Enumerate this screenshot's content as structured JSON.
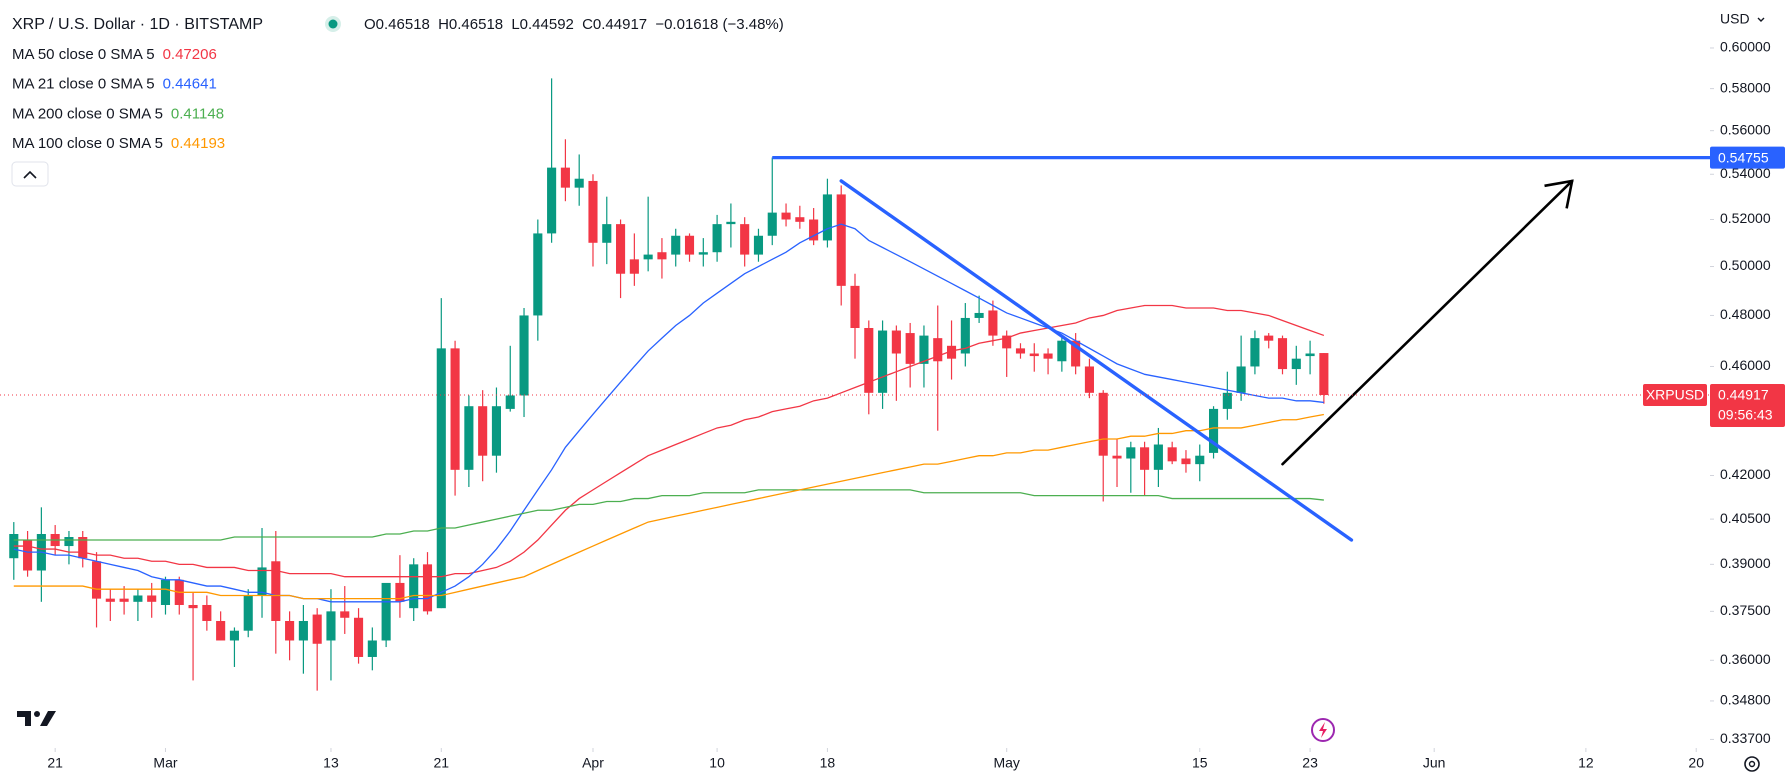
{
  "chart_data": {
    "type": "candlestick",
    "title": "XRP / U.S. Dollar · 1D · BITSTAMP",
    "symbol": "XRPUSD",
    "currency": "USD",
    "ohlc_labels": [
      "O",
      "H",
      "L",
      "C"
    ],
    "change": "−0.01618 (−3.48%)",
    "countdown": "09:56:43",
    "up_color": "#089981",
    "down_color": "#f23645",
    "log_y": true,
    "grid": false,
    "x": [
      "02-18",
      "02-19",
      "02-20",
      "02-21",
      "02-22",
      "02-23",
      "02-24",
      "02-25",
      "02-26",
      "02-27",
      "02-28",
      "03-01",
      "03-02",
      "03-03",
      "03-04",
      "03-05",
      "03-06",
      "03-07",
      "03-08",
      "03-09",
      "03-10",
      "03-11",
      "03-12",
      "03-13",
      "03-14",
      "03-15",
      "03-16",
      "03-17",
      "03-18",
      "03-19",
      "03-20",
      "03-21",
      "03-22",
      "03-23",
      "03-24",
      "03-25",
      "03-26",
      "03-27",
      "03-28",
      "03-29",
      "03-30",
      "03-31",
      "04-01",
      "04-02",
      "04-03",
      "04-04",
      "04-05",
      "04-06",
      "04-07",
      "04-08",
      "04-09",
      "04-10",
      "04-11",
      "04-12",
      "04-13",
      "04-14",
      "04-15",
      "04-16",
      "04-17",
      "04-18",
      "04-19",
      "04-20",
      "04-21",
      "04-22",
      "04-23",
      "04-24",
      "04-25",
      "04-26",
      "04-27",
      "04-28",
      "04-29",
      "04-30",
      "05-01",
      "05-02",
      "05-03",
      "05-04",
      "05-05",
      "05-06",
      "05-07",
      "05-08",
      "05-09",
      "05-10",
      "05-11",
      "05-12",
      "05-13",
      "05-14",
      "05-15",
      "05-16",
      "05-17",
      "05-18",
      "05-19",
      "05-20",
      "05-21",
      "05-22",
      "05-23",
      "05-24"
    ],
    "open": [
      0.392,
      0.398,
      0.388,
      0.4,
      0.396,
      0.399,
      0.391,
      0.379,
      0.379,
      0.378,
      0.38,
      0.377,
      0.385,
      0.377,
      0.377,
      0.372,
      0.366,
      0.369,
      0.38,
      0.391,
      0.372,
      0.366,
      0.374,
      0.366,
      0.375,
      0.373,
      0.361,
      0.366,
      0.384,
      0.376,
      0.39,
      0.376,
      0.467,
      0.422,
      0.445,
      0.427,
      0.444,
      0.449,
      0.48,
      0.514,
      0.543,
      0.534,
      0.537,
      0.51,
      0.518,
      0.503,
      0.503,
      0.506,
      0.505,
      0.513,
      0.505,
      0.506,
      0.518,
      0.518,
      0.505,
      0.513,
      0.523,
      0.521,
      0.52,
      0.511,
      0.531,
      0.492,
      0.475,
      0.45,
      0.474,
      0.473,
      0.461,
      0.471,
      0.468,
      0.465,
      0.479,
      0.482,
      0.472,
      0.467,
      0.465,
      0.465,
      0.462,
      0.47,
      0.46,
      0.45,
      0.427,
      0.426,
      0.43,
      0.422,
      0.43,
      0.426,
      0.424,
      0.428,
      0.444,
      0.45,
      0.46,
      0.472,
      0.471,
      0.459,
      0.464,
      0.46518
    ],
    "high": [
      0.404,
      0.401,
      0.409,
      0.403,
      0.401,
      0.401,
      0.394,
      0.382,
      0.383,
      0.382,
      0.384,
      0.386,
      0.386,
      0.381,
      0.38,
      0.375,
      0.37,
      0.382,
      0.402,
      0.401,
      0.375,
      0.377,
      0.376,
      0.382,
      0.383,
      0.376,
      0.37,
      0.383,
      0.393,
      0.392,
      0.394,
      0.487,
      0.47,
      0.449,
      0.451,
      0.452,
      0.468,
      0.483,
      0.52,
      0.585,
      0.556,
      0.549,
      0.54,
      0.53,
      0.52,
      0.514,
      0.53,
      0.512,
      0.516,
      0.514,
      0.512,
      0.522,
      0.527,
      0.521,
      0.516,
      0.5476,
      0.527,
      0.526,
      0.525,
      0.538,
      0.535,
      0.497,
      0.478,
      0.478,
      0.476,
      0.477,
      0.476,
      0.484,
      0.478,
      0.485,
      0.488,
      0.486,
      0.474,
      0.469,
      0.469,
      0.467,
      0.472,
      0.473,
      0.463,
      0.451,
      0.433,
      0.432,
      0.432,
      0.437,
      0.432,
      0.429,
      0.431,
      0.445,
      0.458,
      0.472,
      0.474,
      0.473,
      0.472,
      0.468,
      0.47,
      0.46518
    ],
    "low": [
      0.385,
      0.386,
      0.378,
      0.393,
      0.39,
      0.389,
      0.37,
      0.372,
      0.374,
      0.372,
      0.373,
      0.374,
      0.374,
      0.354,
      0.369,
      0.366,
      0.358,
      0.367,
      0.373,
      0.362,
      0.36,
      0.356,
      0.351,
      0.354,
      0.368,
      0.359,
      0.357,
      0.364,
      0.373,
      0.372,
      0.374,
      0.376,
      0.413,
      0.416,
      0.418,
      0.421,
      0.443,
      0.441,
      0.47,
      0.51,
      0.528,
      0.526,
      0.5,
      0.501,
      0.487,
      0.492,
      0.498,
      0.495,
      0.5,
      0.502,
      0.5,
      0.502,
      0.508,
      0.5,
      0.502,
      0.509,
      0.517,
      0.516,
      0.509,
      0.508,
      0.484,
      0.463,
      0.442,
      0.444,
      0.447,
      0.452,
      0.452,
      0.436,
      0.455,
      0.46,
      0.477,
      0.468,
      0.456,
      0.463,
      0.458,
      0.457,
      0.458,
      0.457,
      0.448,
      0.411,
      0.416,
      0.414,
      0.413,
      0.416,
      0.424,
      0.421,
      0.418,
      0.426,
      0.44,
      0.447,
      0.457,
      0.467,
      0.457,
      0.453,
      0.457,
      0.44592
    ],
    "close": [
      0.4,
      0.388,
      0.4,
      0.396,
      0.399,
      0.392,
      0.379,
      0.378,
      0.378,
      0.38,
      0.378,
      0.385,
      0.377,
      0.376,
      0.372,
      0.366,
      0.369,
      0.38,
      0.389,
      0.372,
      0.366,
      0.372,
      0.365,
      0.375,
      0.373,
      0.361,
      0.366,
      0.384,
      0.378,
      0.39,
      0.375,
      0.467,
      0.422,
      0.445,
      0.427,
      0.445,
      0.449,
      0.48,
      0.514,
      0.543,
      0.534,
      0.538,
      0.51,
      0.518,
      0.497,
      0.497,
      0.505,
      0.503,
      0.513,
      0.505,
      0.506,
      0.518,
      0.519,
      0.505,
      0.513,
      0.523,
      0.52,
      0.519,
      0.511,
      0.531,
      0.492,
      0.475,
      0.45,
      0.474,
      0.465,
      0.461,
      0.472,
      0.462,
      0.463,
      0.479,
      0.481,
      0.472,
      0.467,
      0.465,
      0.464,
      0.463,
      0.47,
      0.46,
      0.45,
      0.427,
      0.426,
      0.43,
      0.422,
      0.431,
      0.425,
      0.424,
      0.427,
      0.444,
      0.45,
      0.46,
      0.471,
      0.47,
      0.459,
      0.463,
      0.465,
      0.44917
    ],
    "series": [
      {
        "name": "MA 50 close 0 SMA 5",
        "color": "#f23645",
        "values": [
          0.396,
          0.396,
          0.395,
          0.395,
          0.394,
          0.394,
          0.393,
          0.393,
          0.392,
          0.392,
          0.391,
          0.391,
          0.39,
          0.39,
          0.389,
          0.389,
          0.389,
          0.388,
          0.388,
          0.388,
          0.387,
          0.387,
          0.387,
          0.387,
          0.386,
          0.386,
          0.386,
          0.386,
          0.386,
          0.386,
          0.386,
          0.386,
          0.387,
          0.387,
          0.388,
          0.389,
          0.391,
          0.394,
          0.398,
          0.403,
          0.408,
          0.412,
          0.415,
          0.418,
          0.421,
          0.424,
          0.427,
          0.429,
          0.431,
          0.433,
          0.435,
          0.437,
          0.438,
          0.44,
          0.441,
          0.443,
          0.444,
          0.445,
          0.447,
          0.448,
          0.45,
          0.452,
          0.454,
          0.456,
          0.458,
          0.46,
          0.462,
          0.464,
          0.466,
          0.467,
          0.469,
          0.47,
          0.471,
          0.473,
          0.474,
          0.475,
          0.476,
          0.477,
          0.479,
          0.48,
          0.482,
          0.483,
          0.484,
          0.484,
          0.484,
          0.483,
          0.483,
          0.483,
          0.482,
          0.482,
          0.481,
          0.48,
          0.478,
          0.476,
          0.474,
          0.47206
        ]
      },
      {
        "name": "MA 21 close 0 SMA 5",
        "color": "#2962ff",
        "values": [
          0.395,
          0.394,
          0.394,
          0.393,
          0.393,
          0.392,
          0.391,
          0.39,
          0.389,
          0.388,
          0.386,
          0.385,
          0.385,
          0.384,
          0.383,
          0.383,
          0.382,
          0.381,
          0.381,
          0.38,
          0.38,
          0.379,
          0.379,
          0.378,
          0.378,
          0.378,
          0.378,
          0.378,
          0.378,
          0.379,
          0.379,
          0.381,
          0.383,
          0.386,
          0.39,
          0.395,
          0.401,
          0.408,
          0.415,
          0.422,
          0.43,
          0.436,
          0.442,
          0.448,
          0.454,
          0.46,
          0.466,
          0.471,
          0.476,
          0.48,
          0.485,
          0.489,
          0.493,
          0.497,
          0.5,
          0.503,
          0.506,
          0.51,
          0.513,
          0.516,
          0.518,
          0.516,
          0.511,
          0.508,
          0.505,
          0.502,
          0.499,
          0.496,
          0.493,
          0.49,
          0.487,
          0.484,
          0.481,
          0.479,
          0.477,
          0.475,
          0.473,
          0.47,
          0.467,
          0.464,
          0.461,
          0.459,
          0.457,
          0.456,
          0.455,
          0.454,
          0.453,
          0.452,
          0.451,
          0.45,
          0.449,
          0.448,
          0.448,
          0.447,
          0.447,
          0.44641
        ]
      },
      {
        "name": "MA 200 close 0 SMA 5",
        "color": "#4caf50",
        "values": [
          0.398,
          0.398,
          0.398,
          0.398,
          0.398,
          0.398,
          0.398,
          0.398,
          0.398,
          0.398,
          0.398,
          0.398,
          0.398,
          0.398,
          0.398,
          0.398,
          0.399,
          0.399,
          0.399,
          0.399,
          0.399,
          0.399,
          0.399,
          0.399,
          0.399,
          0.399,
          0.399,
          0.4,
          0.4,
          0.401,
          0.401,
          0.402,
          0.402,
          0.403,
          0.404,
          0.405,
          0.406,
          0.407,
          0.408,
          0.408,
          0.409,
          0.41,
          0.41,
          0.411,
          0.411,
          0.412,
          0.412,
          0.413,
          0.413,
          0.413,
          0.414,
          0.414,
          0.414,
          0.414,
          0.415,
          0.415,
          0.415,
          0.415,
          0.415,
          0.415,
          0.415,
          0.415,
          0.415,
          0.415,
          0.415,
          0.415,
          0.414,
          0.414,
          0.414,
          0.414,
          0.414,
          0.414,
          0.414,
          0.414,
          0.413,
          0.413,
          0.413,
          0.413,
          0.413,
          0.413,
          0.413,
          0.413,
          0.413,
          0.413,
          0.412,
          0.412,
          0.412,
          0.412,
          0.412,
          0.412,
          0.412,
          0.412,
          0.412,
          0.412,
          0.412,
          0.41148
        ]
      },
      {
        "name": "MA 100 close 0 SMA 5",
        "color": "#ff9800",
        "values": [
          0.383,
          0.383,
          0.383,
          0.383,
          0.383,
          0.383,
          0.382,
          0.382,
          0.382,
          0.382,
          0.382,
          0.382,
          0.381,
          0.381,
          0.381,
          0.38,
          0.38,
          0.38,
          0.38,
          0.38,
          0.38,
          0.379,
          0.379,
          0.379,
          0.379,
          0.379,
          0.379,
          0.379,
          0.379,
          0.38,
          0.38,
          0.38,
          0.381,
          0.382,
          0.383,
          0.384,
          0.385,
          0.386,
          0.388,
          0.39,
          0.392,
          0.394,
          0.396,
          0.398,
          0.4,
          0.402,
          0.404,
          0.405,
          0.406,
          0.407,
          0.408,
          0.409,
          0.41,
          0.411,
          0.412,
          0.413,
          0.414,
          0.415,
          0.416,
          0.417,
          0.418,
          0.419,
          0.42,
          0.421,
          0.422,
          0.423,
          0.424,
          0.424,
          0.425,
          0.426,
          0.427,
          0.427,
          0.428,
          0.428,
          0.429,
          0.429,
          0.43,
          0.431,
          0.432,
          0.433,
          0.433,
          0.434,
          0.434,
          0.435,
          0.435,
          0.436,
          0.436,
          0.437,
          0.437,
          0.437,
          0.438,
          0.439,
          0.44,
          0.44,
          0.441,
          0.44193
        ]
      }
    ],
    "hline": {
      "x": "04-14",
      "value": 0.54755,
      "color": "#2962ff"
    },
    "trendlines": [
      {
        "x": [
          "04-19",
          "05-26"
        ],
        "values": [
          0.537,
          0.398
        ],
        "color": "#2962ff",
        "arrow": false
      },
      {
        "x": [
          "05-21",
          "06-11"
        ],
        "values": [
          0.424,
          0.537
        ],
        "color": "#000000",
        "arrow": true
      }
    ],
    "xlim": [
      "02-17",
      "06-21"
    ],
    "ylim": [
      0.3346,
      0.6245
    ],
    "yticks": [
      {
        "value": 0.6,
        "label": "0.60000"
      },
      {
        "value": 0.58,
        "label": "0.58000"
      },
      {
        "value": 0.56,
        "label": "0.56000"
      },
      {
        "value": 0.54,
        "label": "0.54000"
      },
      {
        "value": 0.52,
        "label": "0.52000"
      },
      {
        "value": 0.5,
        "label": "0.50000"
      },
      {
        "value": 0.48,
        "label": "0.48000"
      },
      {
        "value": 0.46,
        "label": "0.46000"
      },
      {
        "value": 0.42,
        "label": "0.42000"
      },
      {
        "value": 0.405,
        "label": "0.40500"
      },
      {
        "value": 0.39,
        "label": "0.39000"
      },
      {
        "value": 0.375,
        "label": "0.37500"
      },
      {
        "value": 0.36,
        "label": "0.36000"
      },
      {
        "value": 0.348,
        "label": "0.34800"
      },
      {
        "value": 0.337,
        "label": "0.33700"
      }
    ],
    "xticks": [
      {
        "value": "02-21",
        "label": "21"
      },
      {
        "value": "03-01",
        "label": "Mar"
      },
      {
        "value": "03-13",
        "label": "13"
      },
      {
        "value": "03-21",
        "label": "21"
      },
      {
        "value": "04-01",
        "label": "Apr"
      },
      {
        "value": "04-10",
        "label": "10"
      },
      {
        "value": "04-18",
        "label": "18"
      },
      {
        "value": "05-01",
        "label": "May"
      },
      {
        "value": "05-15",
        "label": "15"
      },
      {
        "value": "05-23",
        "label": "23"
      },
      {
        "value": "06-01",
        "label": "Jun"
      },
      {
        "value": "06-12",
        "label": "12"
      },
      {
        "value": "06-20",
        "label": "20"
      }
    ]
  }
}
